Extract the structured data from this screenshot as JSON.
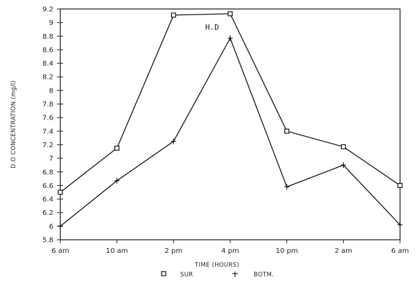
{
  "chart_data": {
    "type": "line",
    "title": "",
    "xlabel": "TIME (HOURS)",
    "ylabel": "D.O CONCENTRATION (mg/l)",
    "categories": [
      "6 am",
      "10 am",
      "2 pm",
      "4 pm",
      "10 pm",
      "2 am",
      "6 am"
    ],
    "yticks": [
      5.8,
      6,
      6.2,
      6.4,
      6.6,
      6.8,
      7,
      7.2,
      7.4,
      7.6,
      7.8,
      8,
      8.2,
      8.4,
      8.6,
      8.8,
      9,
      9.2
    ],
    "ytick_labels": [
      "5.8",
      "6",
      "6.2",
      "6.4",
      "6.6",
      "6.8",
      "7",
      "7.2",
      "7.4",
      "7.6",
      "7.8",
      "8",
      "8.2",
      "8.4",
      "8.6",
      "8.8",
      "9",
      "9.2"
    ],
    "ylim": [
      5.8,
      9.2
    ],
    "grid": false,
    "legend_position": "bottom",
    "series": [
      {
        "name": "SUR",
        "marker": "square",
        "values": [
          6.5,
          7.15,
          9.11,
          9.13,
          7.4,
          7.17,
          6.6
        ]
      },
      {
        "name": "BOTM.",
        "marker": "plus",
        "values": [
          6.0,
          6.67,
          7.25,
          8.77,
          6.58,
          6.9,
          6.02
        ]
      }
    ],
    "annotations": [
      {
        "text": "H.D",
        "x": "between 2 pm and 4 pm",
        "y": 8.95
      }
    ]
  },
  "labels": {
    "ylabel": "D.O CONCENTRATION (mg/l)",
    "xlabel": "TIME (HOURS)",
    "annotation": "H.D",
    "legend_sur": "SUR",
    "legend_botm": "BOTM."
  }
}
